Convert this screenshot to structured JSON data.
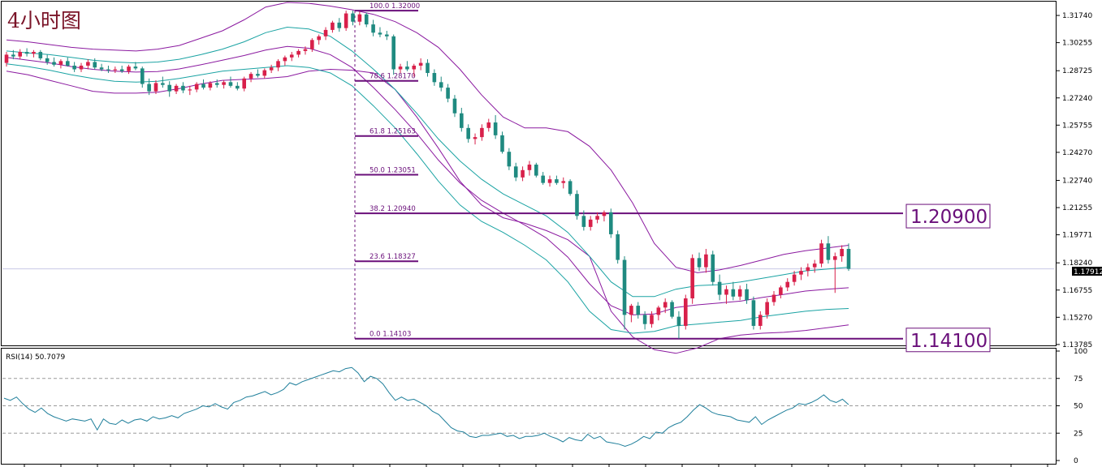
{
  "chart_title": "4小时图",
  "colors": {
    "bull": "#d8204a",
    "bear": "#1f8a80",
    "bb_outer": "#8b1aa0",
    "bb_inner": "#8b1aa0",
    "bb_mid": "#1aa3a3",
    "fib": "#6a0f7a",
    "rsi": "#1f7f9b",
    "grid": "#9a9a9a",
    "frame": "#000000"
  },
  "current_price_label": "1.17912",
  "callouts": [
    {
      "label": "1.20900",
      "price": 1.209
    },
    {
      "label": "1.14100",
      "price": 1.141
    }
  ],
  "chart_data": [
    {
      "type": "candlestick",
      "name": "price",
      "y_ticks": [
        "1.31740",
        "1.30255",
        "1.28725",
        "1.27240",
        "1.25755",
        "1.24270",
        "1.22740",
        "1.21255",
        "1.19771",
        "1.18240",
        "1.16755",
        "1.15270",
        "1.13785"
      ],
      "ylim": [
        1.1378,
        1.3245
      ],
      "current_price": 1.17912,
      "fib_levels": [
        {
          "label": "100.0  1.32000",
          "price": 1.32
        },
        {
          "label": "78.6  1.28170",
          "price": 1.2817
        },
        {
          "label": "61.8  1.25163",
          "price": 1.25163
        },
        {
          "label": "50.0  1.23051",
          "price": 1.23051
        },
        {
          "label": "38.2  1.20940",
          "price": 1.2094
        },
        {
          "label": "23.6  1.18327",
          "price": 1.18327
        },
        {
          "label": "0.0  1.14103",
          "price": 1.14103
        }
      ],
      "candles": [
        [
          1.2915,
          1.2975,
          1.2895,
          1.296
        ],
        [
          1.296,
          1.2985,
          1.2935,
          1.295
        ],
        [
          1.295,
          1.299,
          1.2935,
          1.2975
        ],
        [
          1.2975,
          1.2995,
          1.295,
          1.2965
        ],
        [
          1.2965,
          1.2985,
          1.2945,
          1.2975
        ],
        [
          1.2975,
          1.2985,
          1.293,
          1.294
        ],
        [
          1.294,
          1.296,
          1.2905,
          1.292
        ],
        [
          1.292,
          1.2945,
          1.2895,
          1.2905
        ],
        [
          1.2905,
          1.2935,
          1.2885,
          1.2925
        ],
        [
          1.2925,
          1.2945,
          1.2895,
          1.29
        ],
        [
          1.29,
          1.292,
          1.2865,
          1.288
        ],
        [
          1.288,
          1.2915,
          1.2865,
          1.29
        ],
        [
          1.29,
          1.2935,
          1.288,
          1.292
        ],
        [
          1.292,
          1.294,
          1.288,
          1.289
        ],
        [
          1.289,
          1.291,
          1.287,
          1.288
        ],
        [
          1.288,
          1.29,
          1.286,
          1.2875
        ],
        [
          1.2875,
          1.2895,
          1.286,
          1.288
        ],
        [
          1.288,
          1.29,
          1.286,
          1.287
        ],
        [
          1.287,
          1.2905,
          1.2855,
          1.2895
        ],
        [
          1.2895,
          1.292,
          1.2875,
          1.2885
        ],
        [
          1.2885,
          1.2895,
          1.278,
          1.28
        ],
        [
          1.28,
          1.283,
          1.274,
          1.276
        ],
        [
          1.276,
          1.282,
          1.2745,
          1.2805
        ],
        [
          1.2805,
          1.284,
          1.278,
          1.2795
        ],
        [
          1.2795,
          1.2815,
          1.273,
          1.276
        ],
        [
          1.276,
          1.28,
          1.2745,
          1.279
        ],
        [
          1.279,
          1.281,
          1.275,
          1.2765
        ],
        [
          1.2765,
          1.279,
          1.274,
          1.277
        ],
        [
          1.277,
          1.281,
          1.2755,
          1.28
        ],
        [
          1.28,
          1.2825,
          1.277,
          1.278
        ],
        [
          1.278,
          1.2815,
          1.2765,
          1.2805
        ],
        [
          1.2805,
          1.2825,
          1.278,
          1.2795
        ],
        [
          1.2795,
          1.282,
          1.2775,
          1.281
        ],
        [
          1.281,
          1.284,
          1.278,
          1.279
        ],
        [
          1.279,
          1.281,
          1.2765,
          1.2775
        ],
        [
          1.2775,
          1.284,
          1.276,
          1.283
        ],
        [
          1.283,
          1.2865,
          1.281,
          1.2855
        ],
        [
          1.2855,
          1.288,
          1.2835,
          1.2845
        ],
        [
          1.2845,
          1.2885,
          1.283,
          1.2875
        ],
        [
          1.2875,
          1.2905,
          1.286,
          1.289
        ],
        [
          1.289,
          1.2935,
          1.287,
          1.2925
        ],
        [
          1.2925,
          1.2955,
          1.29,
          1.2945
        ],
        [
          1.2945,
          1.2975,
          1.2925,
          1.296
        ],
        [
          1.296,
          1.299,
          1.2945,
          1.298
        ],
        [
          1.298,
          1.3005,
          1.296,
          1.299
        ],
        [
          1.299,
          1.305,
          1.2975,
          1.304
        ],
        [
          1.304,
          1.307,
          1.3015,
          1.306
        ],
        [
          1.306,
          1.311,
          1.304,
          1.3095
        ],
        [
          1.3095,
          1.3145,
          1.308,
          1.3135
        ],
        [
          1.3135,
          1.316,
          1.3085,
          1.3105
        ],
        [
          1.3105,
          1.32,
          1.309,
          1.3185
        ],
        [
          1.3185,
          1.32,
          1.312,
          1.314
        ],
        [
          1.314,
          1.3195,
          1.312,
          1.318
        ],
        [
          1.318,
          1.319,
          1.311,
          1.3125
        ],
        [
          1.3125,
          1.315,
          1.306,
          1.308
        ],
        [
          1.308,
          1.311,
          1.3055,
          1.307
        ],
        [
          1.307,
          1.309,
          1.304,
          1.306
        ],
        [
          1.306,
          1.307,
          1.285,
          1.288
        ],
        [
          1.288,
          1.291,
          1.286,
          1.2895
        ],
        [
          1.2895,
          1.2925,
          1.287,
          1.288
        ],
        [
          1.288,
          1.291,
          1.284,
          1.29
        ],
        [
          1.29,
          1.294,
          1.2875,
          1.2915
        ],
        [
          1.2915,
          1.2935,
          1.284,
          1.286
        ],
        [
          1.286,
          1.288,
          1.279,
          1.281
        ],
        [
          1.281,
          1.284,
          1.276,
          1.278
        ],
        [
          1.278,
          1.28,
          1.27,
          1.272
        ],
        [
          1.272,
          1.274,
          1.262,
          1.264
        ],
        [
          1.264,
          1.267,
          1.254,
          1.256
        ],
        [
          1.256,
          1.258,
          1.248,
          1.25
        ],
        [
          1.25,
          1.253,
          1.247,
          1.251
        ],
        [
          1.251,
          1.258,
          1.249,
          1.256
        ],
        [
          1.256,
          1.261,
          1.254,
          1.259
        ],
        [
          1.259,
          1.263,
          1.25,
          1.252
        ],
        [
          1.252,
          1.254,
          1.242,
          1.243
        ],
        [
          1.243,
          1.245,
          1.233,
          1.235
        ],
        [
          1.235,
          1.237,
          1.227,
          1.229
        ],
        [
          1.229,
          1.235,
          1.227,
          1.233
        ],
        [
          1.233,
          1.238,
          1.23,
          1.236
        ],
        [
          1.236,
          1.237,
          1.229,
          1.23
        ],
        [
          1.23,
          1.232,
          1.225,
          1.226
        ],
        [
          1.226,
          1.23,
          1.224,
          1.228
        ],
        [
          1.228,
          1.23,
          1.225,
          1.226
        ],
        [
          1.226,
          1.229,
          1.223,
          1.227
        ],
        [
          1.227,
          1.228,
          1.219,
          1.22
        ],
        [
          1.22,
          1.222,
          1.206,
          1.208
        ],
        [
          1.208,
          1.211,
          1.2,
          1.202
        ],
        [
          1.202,
          1.208,
          1.2,
          1.206
        ],
        [
          1.206,
          1.21,
          1.204,
          1.208
        ],
        [
          1.208,
          1.211,
          1.205,
          1.21
        ],
        [
          1.21,
          1.212,
          1.196,
          1.198
        ],
        [
          1.198,
          1.2,
          1.182,
          1.184
        ],
        [
          1.184,
          1.186,
          1.146,
          1.154
        ],
        [
          1.154,
          1.16,
          1.15,
          1.159
        ],
        [
          1.159,
          1.161,
          1.152,
          1.154
        ],
        [
          1.154,
          1.156,
          1.146,
          1.149
        ],
        [
          1.149,
          1.156,
          1.147,
          1.154
        ],
        [
          1.154,
          1.159,
          1.151,
          1.158
        ],
        [
          1.158,
          1.163,
          1.155,
          1.161
        ],
        [
          1.161,
          1.162,
          1.152,
          1.153
        ],
        [
          1.153,
          1.156,
          1.141,
          1.148
        ],
        [
          1.148,
          1.165,
          1.146,
          1.163
        ],
        [
          1.163,
          1.187,
          1.16,
          1.185
        ],
        [
          1.185,
          1.188,
          1.178,
          1.18
        ],
        [
          1.18,
          1.19,
          1.177,
          1.187
        ],
        [
          1.187,
          1.189,
          1.17,
          1.172
        ],
        [
          1.172,
          1.176,
          1.162,
          1.165
        ],
        [
          1.165,
          1.17,
          1.16,
          1.168
        ],
        [
          1.168,
          1.172,
          1.162,
          1.164
        ],
        [
          1.164,
          1.17,
          1.162,
          1.168
        ],
        [
          1.168,
          1.171,
          1.16,
          1.162
        ],
        [
          1.162,
          1.164,
          1.146,
          1.148
        ],
        [
          1.148,
          1.156,
          1.146,
          1.154
        ],
        [
          1.154,
          1.163,
          1.152,
          1.161
        ],
        [
          1.161,
          1.167,
          1.159,
          1.165
        ],
        [
          1.165,
          1.17,
          1.163,
          1.169
        ],
        [
          1.169,
          1.174,
          1.167,
          1.172
        ],
        [
          1.172,
          1.178,
          1.17,
          1.176
        ],
        [
          1.176,
          1.18,
          1.173,
          1.178
        ],
        [
          1.178,
          1.182,
          1.175,
          1.18
        ],
        [
          1.18,
          1.184,
          1.177,
          1.182
        ],
        [
          1.182,
          1.195,
          1.18,
          1.193
        ],
        [
          1.193,
          1.197,
          1.182,
          1.184
        ],
        [
          1.184,
          1.188,
          1.166,
          1.186
        ],
        [
          1.186,
          1.192,
          1.183,
          1.19
        ],
        [
          1.19,
          1.193,
          1.178,
          1.1791
        ]
      ],
      "bollinger": {
        "outer_upper": [
          1.304,
          1.303,
          1.3015,
          1.3,
          1.299,
          1.2985,
          1.298,
          1.299,
          1.301,
          1.305,
          1.309,
          1.315,
          1.322,
          1.3245,
          1.324,
          1.3225,
          1.3205,
          1.318,
          1.314,
          1.308,
          1.3,
          1.288,
          1.274,
          1.262,
          1.256,
          1.256,
          1.254,
          1.246,
          1.233,
          1.215,
          1.193,
          1.18,
          1.177,
          1.1785,
          1.181,
          1.184,
          1.187,
          1.189,
          1.1905,
          1.192
        ],
        "outer_lower": [
          1.287,
          1.285,
          1.282,
          1.279,
          1.276,
          1.275,
          1.275,
          1.2755,
          1.2775,
          1.28,
          1.282,
          1.2825,
          1.283,
          1.284,
          1.287,
          1.288,
          1.2875,
          1.286,
          1.277,
          1.262,
          1.245,
          1.227,
          1.214,
          1.207,
          1.204,
          1.2,
          1.195,
          1.186,
          1.156,
          1.142,
          1.135,
          1.133,
          1.136,
          1.141,
          1.143,
          1.144,
          1.1445,
          1.1455,
          1.147,
          1.1485
        ],
        "inner_upper": [
          1.298,
          1.297,
          1.296,
          1.2945,
          1.293,
          1.292,
          1.2915,
          1.292,
          1.2935,
          1.296,
          1.299,
          1.303,
          1.308,
          1.311,
          1.31,
          1.306,
          1.298,
          1.288,
          1.277,
          1.264,
          1.25,
          1.238,
          1.228,
          1.22,
          1.214,
          1.208,
          1.199,
          1.186,
          1.172,
          1.164,
          1.164,
          1.168,
          1.17,
          1.1705,
          1.172,
          1.174,
          1.176,
          1.178,
          1.179,
          1.18
        ],
        "inner_lower": [
          1.291,
          1.2895,
          1.2875,
          1.285,
          1.283,
          1.2815,
          1.281,
          1.2815,
          1.283,
          1.285,
          1.287,
          1.288,
          1.289,
          1.29,
          1.289,
          1.286,
          1.279,
          1.268,
          1.256,
          1.242,
          1.227,
          1.214,
          1.205,
          1.199,
          1.192,
          1.184,
          1.172,
          1.156,
          1.146,
          1.144,
          1.145,
          1.148,
          1.149,
          1.15,
          1.151,
          1.153,
          1.1545,
          1.156,
          1.157,
          1.1575
        ],
        "mid": [
          1.2945,
          1.293,
          1.2915,
          1.2895,
          1.288,
          1.287,
          1.2865,
          1.2868,
          1.2882,
          1.2905,
          1.293,
          1.2955,
          1.2985,
          1.3005,
          1.2995,
          1.296,
          1.289,
          1.278,
          1.266,
          1.253,
          1.2385,
          1.226,
          1.2165,
          1.2095,
          1.203,
          1.196,
          1.1855,
          1.171,
          1.159,
          1.154,
          1.1545,
          1.158,
          1.1595,
          1.1605,
          1.1615,
          1.1635,
          1.1652,
          1.167,
          1.168,
          1.1688
        ]
      }
    },
    {
      "type": "line",
      "name": "RSI(14) 50.7079",
      "y_ticks": [
        "100",
        "75",
        "50",
        "25",
        "0"
      ],
      "ylim": [
        0,
        100
      ],
      "levels": [
        75,
        50,
        25
      ],
      "values": [
        57,
        55,
        58,
        52,
        47,
        44,
        48,
        43,
        40,
        38,
        36,
        38,
        37,
        36,
        38,
        28,
        38,
        34,
        33,
        37,
        34,
        37,
        38,
        36,
        40,
        38,
        39,
        41,
        39,
        43,
        45,
        47,
        50,
        49,
        52,
        49,
        47,
        53,
        55,
        58,
        59,
        61,
        63,
        60,
        62,
        65,
        71,
        69,
        72,
        74,
        76,
        78,
        80,
        82,
        81,
        84,
        85,
        80,
        72,
        77,
        75,
        70,
        62,
        55,
        58,
        55,
        56,
        53,
        50,
        45,
        42,
        36,
        30,
        27,
        26,
        22,
        21,
        23,
        23,
        24,
        25,
        22,
        23,
        20,
        22,
        22,
        23,
        25,
        22,
        20,
        17,
        21,
        19,
        18,
        24,
        20,
        22,
        17,
        16,
        15,
        13,
        15,
        18,
        22,
        20,
        26,
        25,
        30,
        33,
        35,
        40,
        46,
        51,
        48,
        44,
        42,
        41,
        40,
        37,
        36,
        35,
        40,
        33,
        37,
        40,
        43,
        46,
        48,
        52,
        51,
        53,
        56,
        60,
        55,
        53,
        56,
        51
      ]
    }
  ]
}
